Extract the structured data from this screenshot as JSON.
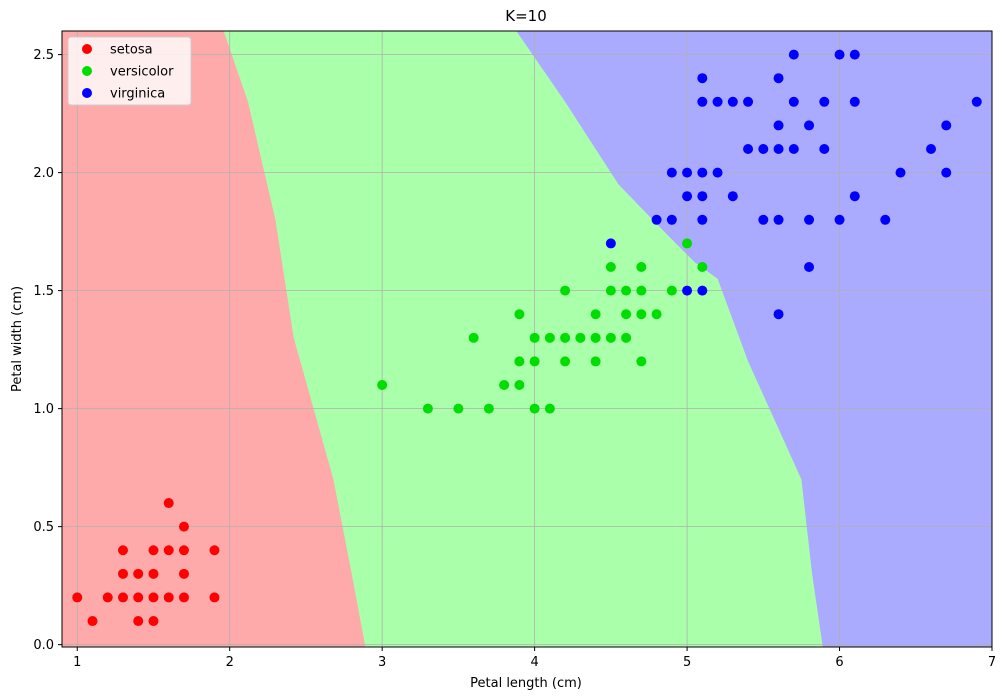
{
  "chart_data": {
    "type": "scatter",
    "title": "K=10",
    "xlabel": "Petal length (cm)",
    "ylabel": "Petal width (cm)",
    "xlim": [
      0.9,
      7.0
    ],
    "ylim": [
      -0.01,
      2.6
    ],
    "xticks": [
      1,
      2,
      3,
      4,
      5,
      6,
      7
    ],
    "yticks": [
      "0.0",
      "0.5",
      "1.0",
      "1.5",
      "2.0",
      "2.5"
    ],
    "grid": true,
    "legend_position": "top-left",
    "background_regions": [
      {
        "name": "setosa",
        "color": "#ffaaaa",
        "boundary": [
          [
            2.89,
            -0.01
          ],
          [
            2.8,
            0.3
          ],
          [
            2.68,
            0.7
          ],
          [
            2.55,
            1.0
          ],
          [
            2.42,
            1.3
          ],
          [
            2.3,
            1.8
          ],
          [
            2.12,
            2.3
          ],
          [
            1.96,
            2.6
          ]
        ]
      },
      {
        "name": "versicolor",
        "color": "#aaffaa",
        "boundary": [
          [
            5.89,
            -0.01
          ],
          [
            5.82,
            0.3
          ],
          [
            5.75,
            0.7
          ],
          [
            5.4,
            1.2
          ],
          [
            5.2,
            1.55
          ],
          [
            5.05,
            1.62
          ],
          [
            4.85,
            1.75
          ],
          [
            4.55,
            1.95
          ],
          [
            4.2,
            2.3
          ],
          [
            3.88,
            2.6
          ]
        ]
      },
      {
        "name": "virginica",
        "color": "#aaaaff"
      }
    ],
    "series": [
      {
        "name": "setosa",
        "color": "#ff0000",
        "points": [
          [
            1.0,
            0.2
          ],
          [
            1.1,
            0.1
          ],
          [
            1.2,
            0.2
          ],
          [
            1.3,
            0.2
          ],
          [
            1.3,
            0.3
          ],
          [
            1.3,
            0.4
          ],
          [
            1.4,
            0.1
          ],
          [
            1.4,
            0.2
          ],
          [
            1.4,
            0.3
          ],
          [
            1.5,
            0.1
          ],
          [
            1.5,
            0.2
          ],
          [
            1.5,
            0.3
          ],
          [
            1.5,
            0.4
          ],
          [
            1.6,
            0.2
          ],
          [
            1.6,
            0.4
          ],
          [
            1.6,
            0.6
          ],
          [
            1.7,
            0.2
          ],
          [
            1.7,
            0.3
          ],
          [
            1.7,
            0.4
          ],
          [
            1.7,
            0.5
          ],
          [
            1.9,
            0.2
          ],
          [
            1.9,
            0.4
          ]
        ]
      },
      {
        "name": "versicolor",
        "color": "#00dd00",
        "points": [
          [
            3.0,
            1.1
          ],
          [
            3.3,
            1.0
          ],
          [
            3.5,
            1.0
          ],
          [
            3.6,
            1.3
          ],
          [
            3.7,
            1.0
          ],
          [
            3.8,
            1.1
          ],
          [
            3.9,
            1.1
          ],
          [
            3.9,
            1.2
          ],
          [
            3.9,
            1.4
          ],
          [
            4.0,
            1.0
          ],
          [
            4.0,
            1.2
          ],
          [
            4.0,
            1.3
          ],
          [
            4.1,
            1.0
          ],
          [
            4.1,
            1.3
          ],
          [
            4.2,
            1.2
          ],
          [
            4.2,
            1.3
          ],
          [
            4.2,
            1.5
          ],
          [
            4.3,
            1.3
          ],
          [
            4.4,
            1.2
          ],
          [
            4.4,
            1.3
          ],
          [
            4.4,
            1.4
          ],
          [
            4.5,
            1.3
          ],
          [
            4.5,
            1.5
          ],
          [
            4.5,
            1.6
          ],
          [
            4.6,
            1.3
          ],
          [
            4.6,
            1.4
          ],
          [
            4.6,
            1.5
          ],
          [
            4.7,
            1.2
          ],
          [
            4.7,
            1.4
          ],
          [
            4.7,
            1.5
          ],
          [
            4.7,
            1.6
          ],
          [
            4.8,
            1.4
          ],
          [
            4.9,
            1.5
          ],
          [
            5.0,
            1.7
          ],
          [
            5.1,
            1.6
          ]
        ]
      },
      {
        "name": "virginica",
        "color": "#0000ff",
        "points": [
          [
            4.5,
            1.7
          ],
          [
            4.8,
            1.8
          ],
          [
            4.9,
            1.8
          ],
          [
            4.9,
            2.0
          ],
          [
            5.0,
            1.5
          ],
          [
            5.0,
            1.9
          ],
          [
            5.0,
            2.0
          ],
          [
            5.1,
            1.5
          ],
          [
            5.1,
            1.8
          ],
          [
            5.1,
            1.9
          ],
          [
            5.1,
            2.0
          ],
          [
            5.1,
            2.3
          ],
          [
            5.1,
            2.4
          ],
          [
            5.2,
            2.0
          ],
          [
            5.2,
            2.3
          ],
          [
            5.3,
            1.9
          ],
          [
            5.3,
            2.3
          ],
          [
            5.4,
            2.1
          ],
          [
            5.4,
            2.3
          ],
          [
            5.5,
            1.8
          ],
          [
            5.5,
            2.1
          ],
          [
            5.6,
            1.4
          ],
          [
            5.6,
            1.8
          ],
          [
            5.6,
            2.1
          ],
          [
            5.6,
            2.2
          ],
          [
            5.6,
            2.4
          ],
          [
            5.7,
            2.1
          ],
          [
            5.7,
            2.3
          ],
          [
            5.7,
            2.5
          ],
          [
            5.8,
            1.6
          ],
          [
            5.8,
            1.8
          ],
          [
            5.8,
            2.2
          ],
          [
            5.9,
            2.1
          ],
          [
            5.9,
            2.3
          ],
          [
            6.0,
            1.8
          ],
          [
            6.0,
            2.5
          ],
          [
            6.1,
            1.9
          ],
          [
            6.1,
            2.3
          ],
          [
            6.1,
            2.5
          ],
          [
            6.3,
            1.8
          ],
          [
            6.4,
            2.0
          ],
          [
            6.6,
            2.1
          ],
          [
            6.7,
            2.0
          ],
          [
            6.7,
            2.2
          ],
          [
            6.9,
            2.3
          ]
        ]
      }
    ]
  }
}
